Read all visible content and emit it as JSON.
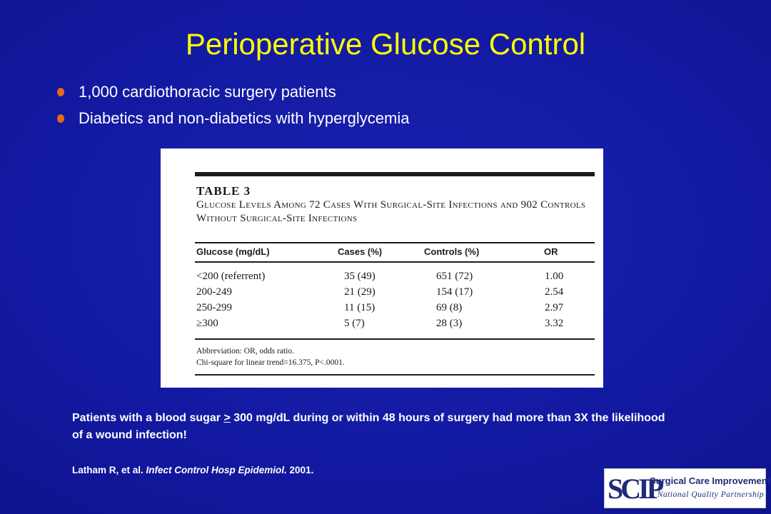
{
  "title": "Perioperative Glucose Control",
  "bullets": [
    "1,000 cardiothoracic surgery patients",
    "Diabetics and non-diabetics with hyperglycemia"
  ],
  "table": {
    "label": "TABLE 3",
    "caption": "Glucose Levels Among 72 Cases With Surgical-Site Infections and 902 Controls Without Surgical-Site Infections",
    "headers": [
      "Glucose (mg/dL)",
      "Cases (%)",
      "Controls (%)",
      "OR"
    ],
    "rows": [
      {
        "glucose": "<200 (referrent)",
        "cases": "35 (49)",
        "controls": "651 (72)",
        "or": "1.00"
      },
      {
        "glucose": "200-249",
        "cases": "21 (29)",
        "controls": "154 (17)",
        "or": "2.54"
      },
      {
        "glucose": "250-299",
        "cases": "11 (15)",
        "controls": "69 (8)",
        "or": "2.97"
      },
      {
        "glucose": "≥300",
        "cases": "5 (7)",
        "controls": "28 (3)",
        "or": "3.32"
      }
    ],
    "notes": [
      "Abbreviation: OR, odds ratio.",
      "Chi-square for linear trend=16.375, P<.0001."
    ]
  },
  "takeaway": {
    "before": "Patients with a blood sugar ",
    "symbol": ">",
    "after": " 300 mg/dL during or within 48 hours of surgery had more than 3X the likelihood of a wound infection!"
  },
  "citation": {
    "authors": "Latham R, et al. ",
    "journal": "Infect Control Hosp Epidemiol.",
    "year": " 2001."
  },
  "logo": {
    "mark": "SCIP",
    "title": "Surgical Care Improvement Project",
    "subtitle": "A National Quality Partnership"
  },
  "colors": {
    "background": "#13179a",
    "title": "#ffff00",
    "bullet": "#e56a1a",
    "text": "#ffffff"
  }
}
